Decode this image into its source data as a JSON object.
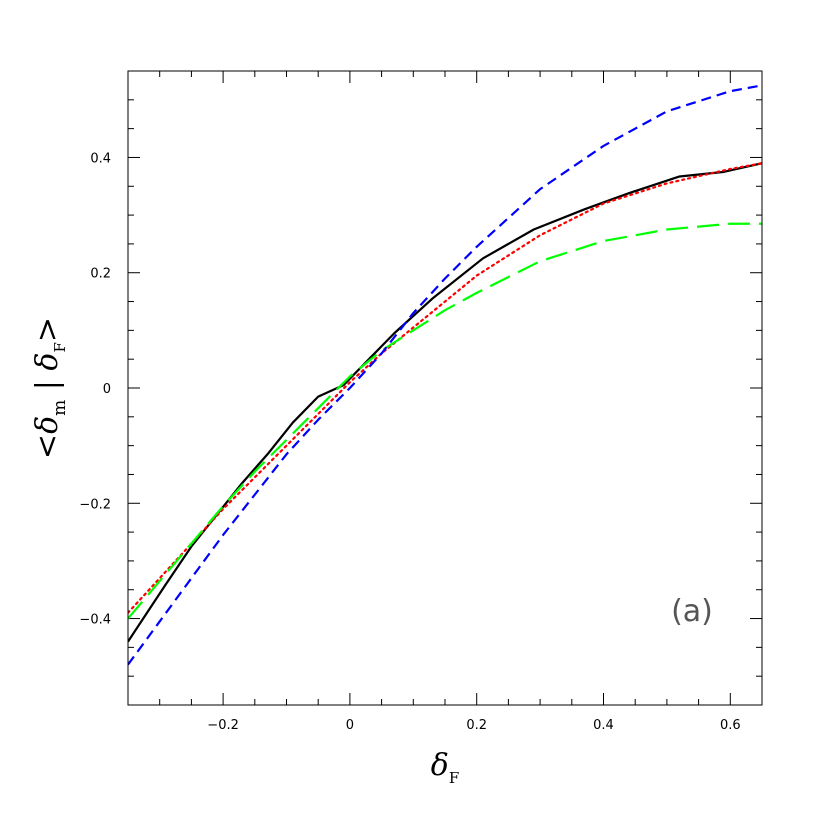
{
  "chart_data": {
    "type": "line",
    "title": "",
    "xlabel": "δ_F",
    "ylabel": "<δ_m | δ_F>",
    "xlim": [
      -0.35,
      0.65
    ],
    "ylim": [
      -0.55,
      0.55
    ],
    "xticks": [
      -0.2,
      0,
      0.2,
      0.4,
      0.6
    ],
    "xtick_labels": [
      "−0.2",
      "0",
      "0.2",
      "0.4",
      "0.6"
    ],
    "yticks": [
      -0.4,
      -0.2,
      0,
      0.2,
      0.4
    ],
    "ytick_labels": [
      "−0.4",
      "−0.2",
      "0",
      "0.2",
      "0.4"
    ],
    "grid": false,
    "annotation": "(a)",
    "series": [
      {
        "color": "#000000",
        "style": "solid",
        "x": [
          -0.35,
          -0.32,
          -0.29,
          -0.25,
          -0.21,
          -0.17,
          -0.13,
          -0.09,
          -0.05,
          -0.01,
          0.03,
          0.07,
          0.13,
          0.21,
          0.29,
          0.37,
          0.44,
          0.52,
          0.59,
          0.65
        ],
        "y": [
          -0.44,
          -0.39,
          -0.34,
          -0.275,
          -0.22,
          -0.165,
          -0.115,
          -0.06,
          -0.015,
          0.005,
          0.05,
          0.095,
          0.155,
          0.225,
          0.275,
          0.31,
          0.338,
          0.367,
          0.375,
          0.39
        ]
      },
      {
        "color": "#ff0000",
        "style": "dotted",
        "x": [
          -0.35,
          -0.3,
          -0.25,
          -0.2,
          -0.15,
          -0.1,
          -0.05,
          0.0,
          0.05,
          0.1,
          0.15,
          0.2,
          0.3,
          0.4,
          0.5,
          0.6,
          0.65
        ],
        "y": [
          -0.39,
          -0.33,
          -0.27,
          -0.21,
          -0.155,
          -0.1,
          -0.045,
          0.01,
          0.06,
          0.105,
          0.15,
          0.195,
          0.265,
          0.32,
          0.355,
          0.38,
          0.39
        ]
      },
      {
        "color": "#00ff00",
        "style": "long-dash",
        "x": [
          -0.35,
          -0.3,
          -0.25,
          -0.2,
          -0.15,
          -0.1,
          -0.05,
          0.0,
          0.05,
          0.1,
          0.15,
          0.2,
          0.3,
          0.4,
          0.5,
          0.6,
          0.65
        ],
        "y": [
          -0.4,
          -0.335,
          -0.27,
          -0.205,
          -0.145,
          -0.09,
          -0.035,
          0.02,
          0.065,
          0.1,
          0.135,
          0.165,
          0.22,
          0.255,
          0.275,
          0.285,
          0.285
        ]
      },
      {
        "color": "#0000ff",
        "style": "short-dash",
        "x": [
          -0.35,
          -0.3,
          -0.25,
          -0.2,
          -0.15,
          -0.1,
          -0.05,
          0.0,
          0.05,
          0.1,
          0.15,
          0.2,
          0.3,
          0.4,
          0.5,
          0.6,
          0.65
        ],
        "y": [
          -0.48,
          -0.405,
          -0.33,
          -0.255,
          -0.185,
          -0.115,
          -0.055,
          0.0,
          0.06,
          0.13,
          0.19,
          0.245,
          0.345,
          0.42,
          0.48,
          0.515,
          0.525
        ]
      }
    ]
  }
}
